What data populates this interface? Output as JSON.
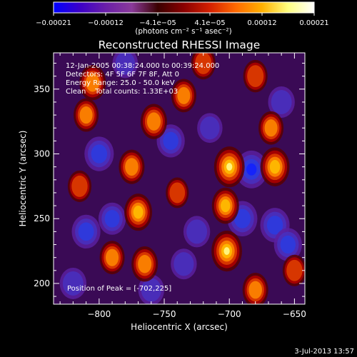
{
  "chart_data": {
    "type": "heatmap",
    "title": "Reconstructed RHESSI Image",
    "xlabel": "Heliocentric X (arcsec)",
    "ylabel": "Heliocentric Y (arcsec)",
    "xlim": [
      -835,
      -642
    ],
    "ylim": [
      184,
      378
    ],
    "xticks": [
      -800,
      -750,
      -700,
      -650
    ],
    "xtick_labels": [
      "−800",
      "−750",
      "−700",
      "−650"
    ],
    "yticks": [
      200,
      250,
      300,
      350
    ],
    "ytick_labels": [
      "200",
      "250",
      "300",
      "350"
    ],
    "colorbar": {
      "min": -0.00021,
      "max": 0.00021,
      "tick_labels": [
        "−0.00021",
        "−0.00012",
        "−4.1e−05",
        "4.1e−05",
        "0.00012",
        "0.00021"
      ],
      "units_label": "(photons cm⁻² s⁻¹ asec⁻²)",
      "colors": [
        "#0000ff",
        "#3b00c8",
        "#6a1ea8",
        "#8a3a9a",
        "#3a0000",
        "#8a0000",
        "#d42000",
        "#ff6a00",
        "#ffb000",
        "#ffff80",
        "#ffffff"
      ]
    },
    "annotations": {
      "time_range": "12-Jan-2005 00:38:24.000 to 00:39:24.000",
      "detectors": "Detectors: 4F 5F 6F 7F 8F, Att 0",
      "energy": "Energy Range: 25.0 - 50.0 keV",
      "clean": "Clean    Total counts: 1.33E+03",
      "peak": "Position of Peak = [-702,225]"
    },
    "peak_position": [
      -702,
      225
    ],
    "hotspots": [
      {
        "x": -700,
        "y": 290,
        "value": 1.0
      },
      {
        "x": -702,
        "y": 225,
        "value": 1.0
      },
      {
        "x": -703,
        "y": 260,
        "value": 0.75
      },
      {
        "x": -770,
        "y": 255,
        "value": 0.8
      },
      {
        "x": -775,
        "y": 290,
        "value": 0.65
      },
      {
        "x": -765,
        "y": 215,
        "value": 0.7
      },
      {
        "x": -758,
        "y": 325,
        "value": 0.7
      },
      {
        "x": -735,
        "y": 345,
        "value": 0.6
      },
      {
        "x": -720,
        "y": 370,
        "value": 0.55
      },
      {
        "x": -680,
        "y": 360,
        "value": 0.55
      },
      {
        "x": -665,
        "y": 290,
        "value": 0.9
      },
      {
        "x": -668,
        "y": 320,
        "value": 0.6
      },
      {
        "x": -680,
        "y": 195,
        "value": 0.65
      },
      {
        "x": -805,
        "y": 355,
        "value": 0.7
      },
      {
        "x": -810,
        "y": 330,
        "value": 0.6
      },
      {
        "x": -815,
        "y": 275,
        "value": 0.5
      },
      {
        "x": -790,
        "y": 220,
        "value": 0.6
      },
      {
        "x": -740,
        "y": 270,
        "value": 0.45
      },
      {
        "x": -650,
        "y": 210,
        "value": 0.5
      }
    ],
    "coldspots": [
      {
        "x": -683,
        "y": 288,
        "value": -1.0
      },
      {
        "x": -690,
        "y": 250,
        "value": -0.85
      },
      {
        "x": -810,
        "y": 240,
        "value": -0.75
      },
      {
        "x": -800,
        "y": 300,
        "value": -0.8
      },
      {
        "x": -790,
        "y": 250,
        "value": -0.65
      },
      {
        "x": -745,
        "y": 310,
        "value": -0.7
      },
      {
        "x": -725,
        "y": 240,
        "value": -0.6
      },
      {
        "x": -665,
        "y": 245,
        "value": -0.8
      },
      {
        "x": -735,
        "y": 215,
        "value": -0.55
      },
      {
        "x": -820,
        "y": 200,
        "value": -0.6
      },
      {
        "x": -715,
        "y": 320,
        "value": -0.5
      },
      {
        "x": -660,
        "y": 340,
        "value": -0.6
      },
      {
        "x": -655,
        "y": 230,
        "value": -0.7
      },
      {
        "x": -780,
        "y": 370,
        "value": -0.5
      },
      {
        "x": -760,
        "y": 195,
        "value": -0.55
      }
    ]
  },
  "footer": {
    "timestamp": "3-Jul-2013 13:57"
  }
}
